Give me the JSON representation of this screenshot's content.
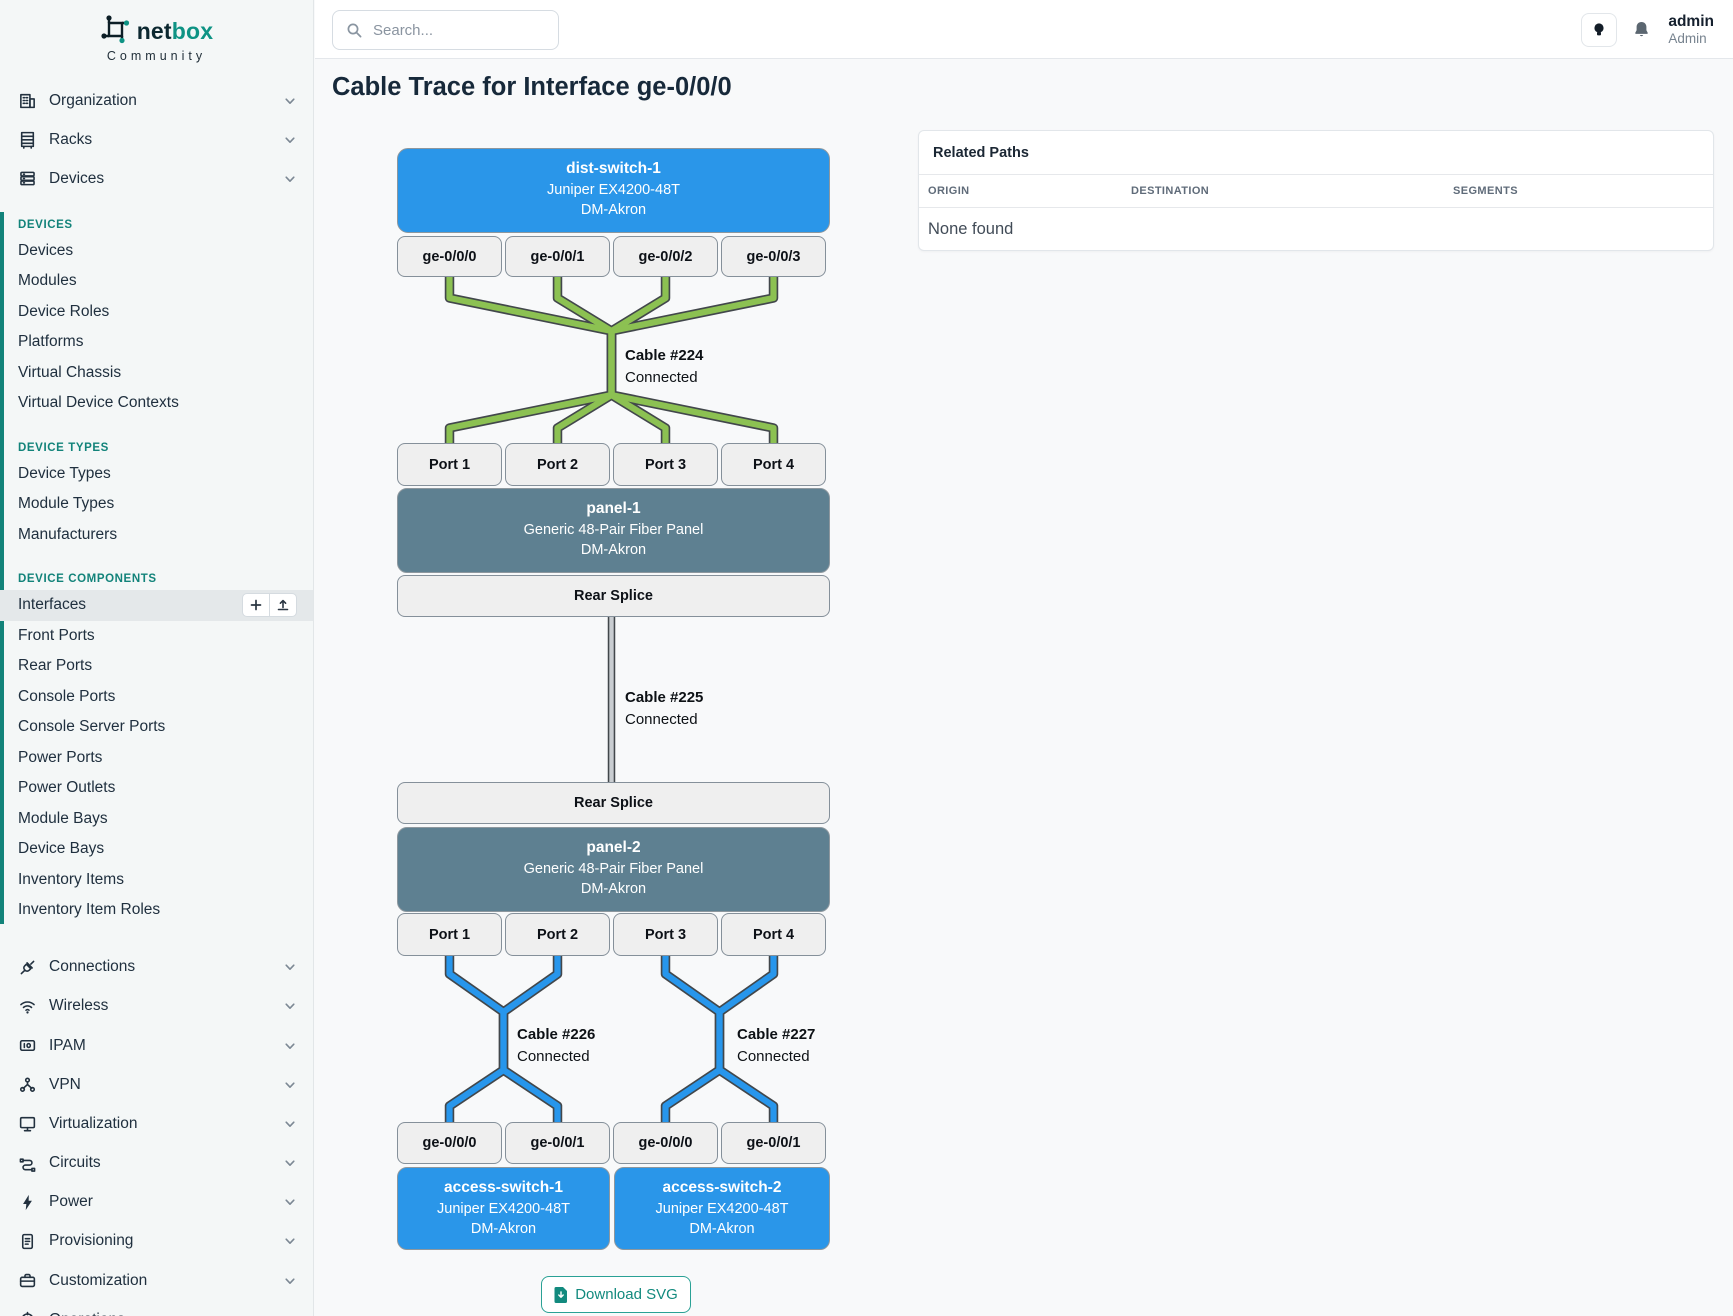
{
  "brand": {
    "logo_primary": "net",
    "logo_secondary": "box",
    "tagline": "Community"
  },
  "header": {
    "search_placeholder": "Search...",
    "user_name": "admin",
    "user_role": "Admin"
  },
  "sidebar": {
    "top_groups": [
      {
        "label": "Organization",
        "icon": "organization-icon"
      },
      {
        "label": "Racks",
        "icon": "racks-icon"
      },
      {
        "label": "Devices",
        "icon": "devices-icon"
      }
    ],
    "sections": [
      {
        "heading": "DEVICES",
        "items": [
          {
            "label": "Devices"
          },
          {
            "label": "Modules"
          },
          {
            "label": "Device Roles"
          },
          {
            "label": "Platforms"
          },
          {
            "label": "Virtual Chassis"
          },
          {
            "label": "Virtual Device Contexts"
          }
        ]
      },
      {
        "heading": "DEVICE TYPES",
        "items": [
          {
            "label": "Device Types"
          },
          {
            "label": "Module Types"
          },
          {
            "label": "Manufacturers"
          }
        ]
      },
      {
        "heading": "DEVICE COMPONENTS",
        "items": [
          {
            "label": "Interfaces",
            "active": true,
            "actions": [
              "plus-icon",
              "upload-icon"
            ]
          },
          {
            "label": "Front Ports"
          },
          {
            "label": "Rear Ports"
          },
          {
            "label": "Console Ports"
          },
          {
            "label": "Console Server Ports"
          },
          {
            "label": "Power Ports"
          },
          {
            "label": "Power Outlets"
          },
          {
            "label": "Module Bays"
          },
          {
            "label": "Device Bays"
          },
          {
            "label": "Inventory Items"
          },
          {
            "label": "Inventory Item Roles"
          }
        ]
      }
    ],
    "bottom_groups": [
      {
        "label": "Connections",
        "icon": "connections-icon"
      },
      {
        "label": "Wireless",
        "icon": "wireless-icon"
      },
      {
        "label": "IPAM",
        "icon": "ipam-icon"
      },
      {
        "label": "VPN",
        "icon": "vpn-icon"
      },
      {
        "label": "Virtualization",
        "icon": "virtualization-icon"
      },
      {
        "label": "Circuits",
        "icon": "circuits-icon"
      },
      {
        "label": "Power",
        "icon": "power-icon"
      },
      {
        "label": "Provisioning",
        "icon": "provisioning-icon"
      },
      {
        "label": "Customization",
        "icon": "customization-icon"
      },
      {
        "label": "Operations",
        "icon": "operations-icon"
      }
    ]
  },
  "page": {
    "title": "Cable Trace for Interface ge-0/0/0",
    "download_button": "Download SVG"
  },
  "trace": {
    "devices": {
      "dist_switch": {
        "name": "dist-switch-1",
        "model": "Juniper EX4200-48T",
        "site": "DM-Akron"
      },
      "panel_1": {
        "name": "panel-1",
        "model": "Generic 48-Pair Fiber Panel",
        "site": "DM-Akron"
      },
      "panel_2": {
        "name": "panel-2",
        "model": "Generic 48-Pair Fiber Panel",
        "site": "DM-Akron"
      },
      "access_switch_1": {
        "name": "access-switch-1",
        "model": "Juniper EX4200-48T",
        "site": "DM-Akron"
      },
      "access_switch_2": {
        "name": "access-switch-2",
        "model": "Juniper EX4200-48T",
        "site": "DM-Akron"
      }
    },
    "port_rows": {
      "dist_switch_interfaces": [
        "ge-0/0/0",
        "ge-0/0/1",
        "ge-0/0/2",
        "ge-0/0/3"
      ],
      "panel_1_front_ports": [
        "Port 1",
        "Port 2",
        "Port 3",
        "Port 4"
      ],
      "panel_2_front_ports": [
        "Port 1",
        "Port 2",
        "Port 3",
        "Port 4"
      ],
      "access_switch_interfaces": [
        "ge-0/0/0",
        "ge-0/0/1",
        "ge-0/0/0",
        "ge-0/0/1"
      ]
    },
    "splices": {
      "top": "Rear Splice",
      "bottom": "Rear Splice"
    },
    "cables": [
      {
        "label": "Cable #224",
        "status": "Connected",
        "color": "#8cc152"
      },
      {
        "label": "Cable #225",
        "status": "Connected",
        "color": "#c9cdd1"
      },
      {
        "label": "Cable #226",
        "status": "Connected",
        "color": "#2796ec"
      },
      {
        "label": "Cable #227",
        "status": "Connected",
        "color": "#2796ec"
      }
    ]
  },
  "related_paths": {
    "title": "Related Paths",
    "columns": [
      "ORIGIN",
      "DESTINATION",
      "SEGMENTS"
    ],
    "empty_text": "None found"
  },
  "colors": {
    "accent_teal": "#12837a",
    "device_blue": "#2a96e9",
    "panel_slate": "#5e8091",
    "cable_outline": "#42474b"
  }
}
